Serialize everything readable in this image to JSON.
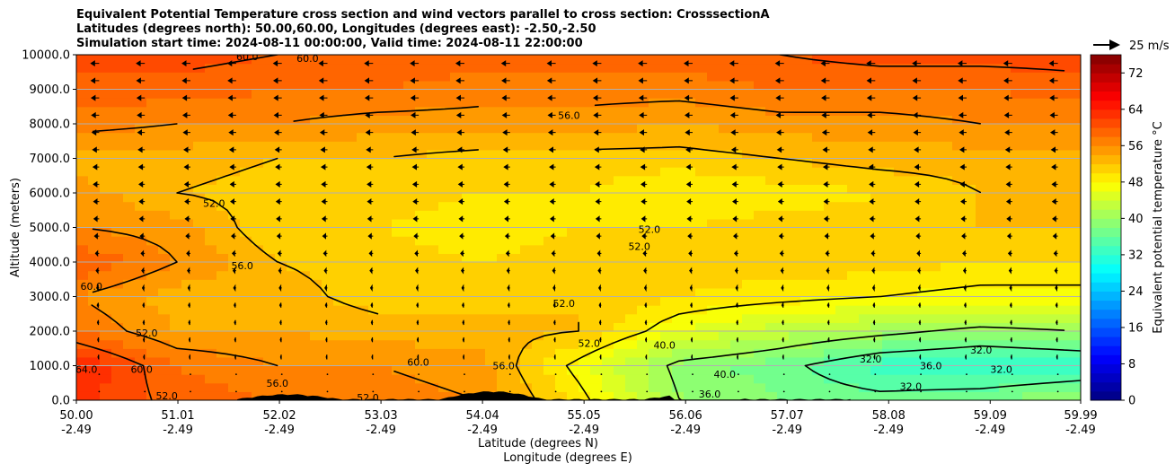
{
  "chart_data": {
    "type": "contourf",
    "title_lines": [
      "Equivalent Potential Temperature cross section and wind vectors parallel to cross section: CrosssectionA",
      "Latitudes (degrees north): 50.00,60.00, Longitudes (degrees east): -2.50,-2.50",
      "Simulation start time: 2024-08-11 00:00:00, Valid time: 2024-08-11 22:00:00"
    ],
    "ylabel": "Altitude (meters)",
    "xlabel_lat": "Latitude (degrees N)",
    "xlabel_lon": "Longitude (degrees E)",
    "ylim": [
      0,
      10000
    ],
    "yticks": [
      "0.0",
      "1000.0",
      "2000.0",
      "3000.0",
      "4000.0",
      "5000.0",
      "6000.0",
      "7000.0",
      "8000.0",
      "9000.0",
      "10000.0"
    ],
    "xlim": [
      50.0,
      59.99
    ],
    "xticks": [
      {
        "lat": "50.00",
        "lon": "-2.49"
      },
      {
        "lat": "51.01",
        "lon": "-2.49"
      },
      {
        "lat": "52.02",
        "lon": "-2.49"
      },
      {
        "lat": "53.03",
        "lon": "-2.49"
      },
      {
        "lat": "54.04",
        "lon": "-2.49"
      },
      {
        "lat": "55.05",
        "lon": "-2.49"
      },
      {
        "lat": "56.06",
        "lon": "-2.49"
      },
      {
        "lat": "57.07",
        "lon": "-2.49"
      },
      {
        "lat": "58.08",
        "lon": "-2.49"
      },
      {
        "lat": "59.09",
        "lon": "-2.49"
      },
      {
        "lat": "59.99",
        "lon": "-2.49"
      }
    ],
    "grid": "horizontal",
    "colorbar": {
      "label": "Equivalent potential temperature $^\\circ$C",
      "label_display": "Equivalent potential temperature °C",
      "min": 0,
      "max": 76,
      "step": 2,
      "ticks": [
        "0",
        "8",
        "16",
        "24",
        "32",
        "40",
        "48",
        "56",
        "64",
        "72"
      ]
    },
    "quiver_key": "25 m/s",
    "contour_levels": [
      32,
      36,
      40,
      48,
      52,
      56,
      60,
      64
    ],
    "contour_labels": [
      {
        "text": "60.0",
        "lat": 51.7,
        "alt": 9950
      },
      {
        "text": "60.0",
        "lat": 52.3,
        "alt": 9900
      },
      {
        "text": "56.0",
        "lat": 54.9,
        "alt": 8250
      },
      {
        "text": "52.0",
        "lat": 51.37,
        "alt": 5700
      },
      {
        "text": "56.0",
        "lat": 51.65,
        "alt": 3900
      },
      {
        "text": "60.0",
        "lat": 50.15,
        "alt": 3300
      },
      {
        "text": "52.0",
        "lat": 50.7,
        "alt": 1950
      },
      {
        "text": "60.0",
        "lat": 50.65,
        "alt": 900
      },
      {
        "text": "64.0",
        "lat": 50.1,
        "alt": 900
      },
      {
        "text": "52.0",
        "lat": 55.6,
        "alt": 4450
      },
      {
        "text": "52.0",
        "lat": 55.7,
        "alt": 4950
      },
      {
        "text": "52.0",
        "lat": 54.85,
        "alt": 2800
      },
      {
        "text": "52.0",
        "lat": 55.1,
        "alt": 1650
      },
      {
        "text": "60.0",
        "lat": 53.4,
        "alt": 1100
      },
      {
        "text": "56.0",
        "lat": 54.25,
        "alt": 1000
      },
      {
        "text": "40.0",
        "lat": 55.85,
        "alt": 1600
      },
      {
        "text": "40.0",
        "lat": 56.45,
        "alt": 750
      },
      {
        "text": "36.0",
        "lat": 56.3,
        "alt": 180
      },
      {
        "text": "32.0",
        "lat": 57.9,
        "alt": 1200
      },
      {
        "text": "36.0",
        "lat": 58.5,
        "alt": 1000
      },
      {
        "text": "32.0",
        "lat": 58.3,
        "alt": 400
      },
      {
        "text": "32.0",
        "lat": 59.0,
        "alt": 1450
      },
      {
        "text": "32.0",
        "lat": 59.2,
        "alt": 900
      },
      {
        "text": "52.0",
        "lat": 50.9,
        "alt": 130
      },
      {
        "text": "56.0",
        "lat": 52.0,
        "alt": 500
      },
      {
        "text": "52.0",
        "lat": 52.9,
        "alt": 80
      }
    ],
    "theta_profile": [
      {
        "lat": 50.0,
        "values": [
          63,
          64,
          58,
          56,
          60,
          56,
          55,
          53,
          57,
          59,
          61
        ]
      },
      {
        "lat": 51.0,
        "values": [
          59,
          58,
          54,
          53,
          56,
          55,
          52,
          53,
          56,
          59,
          61
        ]
      },
      {
        "lat": 52.0,
        "values": [
          58,
          56,
          54,
          53,
          52,
          50,
          51,
          52,
          56,
          58,
          60
        ]
      },
      {
        "lat": 53.0,
        "values": [
          57,
          56,
          53,
          51,
          51,
          50,
          51,
          52,
          55,
          58,
          60
        ]
      },
      {
        "lat": 54.0,
        "values": [
          56,
          55,
          53,
          51,
          50,
          49,
          50,
          51,
          55,
          57,
          59
        ]
      },
      {
        "lat": 55.0,
        "values": [
          49,
          47,
          52,
          52,
          51,
          50,
          50,
          51,
          55,
          57,
          59
        ]
      },
      {
        "lat": 56.0,
        "values": [
          40,
          39,
          46,
          50,
          51,
          50,
          48,
          51,
          54,
          57,
          59
        ]
      },
      {
        "lat": 57.0,
        "values": [
          38,
          37,
          43,
          49,
          51,
          51,
          49,
          52,
          55,
          58,
          60
        ]
      },
      {
        "lat": 58.0,
        "values": [
          37,
          33,
          41,
          48,
          51,
          51,
          50,
          53,
          55,
          58,
          61
        ]
      },
      {
        "lat": 59.0,
        "values": [
          38,
          32,
          39,
          47,
          50,
          52,
          52,
          53,
          56,
          58,
          61
        ]
      },
      {
        "lat": 59.99,
        "values": [
          40,
          33,
          40,
          47,
          50,
          52,
          52,
          53,
          56,
          59,
          61
        ]
      }
    ],
    "profile_altitudes": [
      0,
      1000,
      2000,
      3000,
      4000,
      5000,
      6000,
      7000,
      8000,
      9000,
      10000
    ],
    "wind_profile_ms": [
      0,
      -2,
      -3,
      -4,
      -6,
      -9,
      -10,
      -11,
      -13,
      -14,
      -15
    ]
  }
}
